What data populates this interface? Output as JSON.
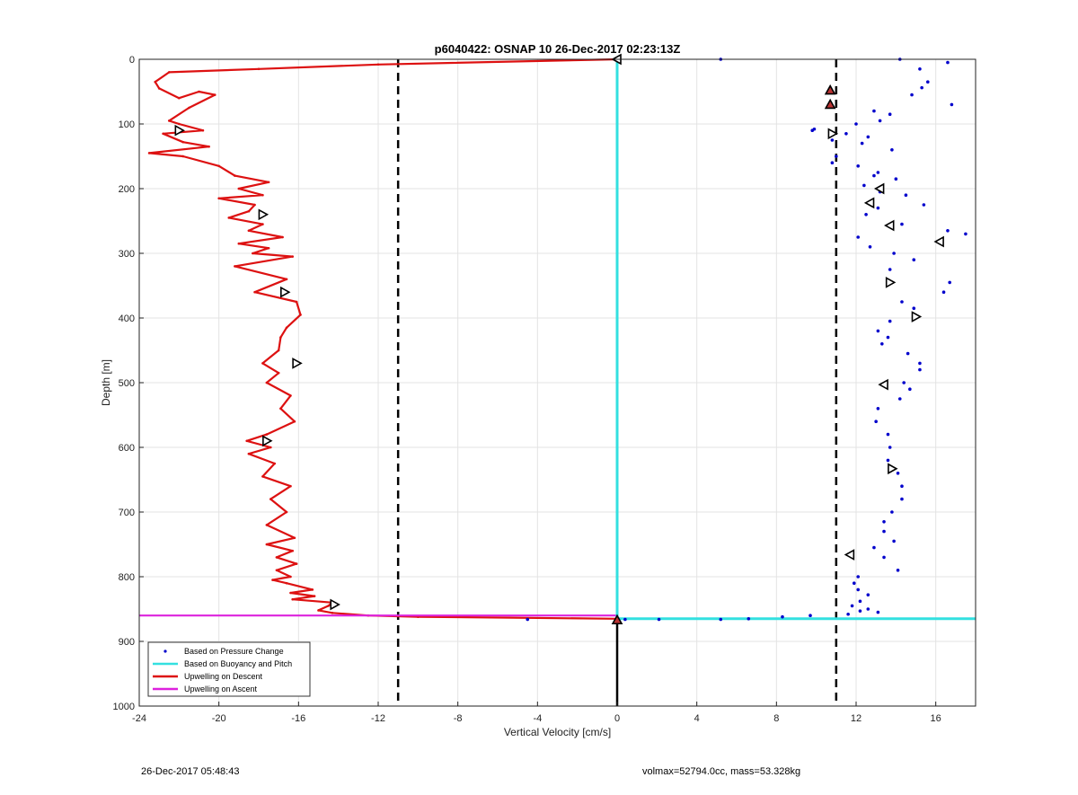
{
  "chart_data": {
    "type": "scatter",
    "title": "p6040422: OSNAP 10 26-Dec-2017 02:23:13Z",
    "xlabel": "Vertical Velocity [cm/s]",
    "ylabel": "Depth [m]",
    "xlim": [
      -24,
      18
    ],
    "ylim": [
      0,
      1000
    ],
    "y_reversed": true,
    "grid": true,
    "xticks": [
      -24,
      -20,
      -16,
      -12,
      -8,
      -4,
      0,
      4,
      8,
      12,
      16
    ],
    "yticks": [
      0,
      100,
      200,
      300,
      400,
      500,
      600,
      700,
      800,
      900,
      1000
    ],
    "legend_position": "bottom-left",
    "legend": [
      {
        "label": "Based on Pressure Change",
        "color": "#0000cc",
        "style": "dot"
      },
      {
        "label": "Based on Buoyancy and Pitch",
        "color": "#33e0e0",
        "style": "line"
      },
      {
        "label": "Upwelling on Descent",
        "color": "#dd1111",
        "style": "line"
      },
      {
        "label": "Upwelling on Ascent",
        "color": "#dd22dd",
        "style": "line"
      }
    ],
    "reference_lines": {
      "dashed_x": [
        -11,
        11
      ],
      "solid_x": 0,
      "solid_x_depth_range": [
        865,
        1000
      ]
    },
    "series": [
      {
        "name": "Upwelling on Descent",
        "color": "#dd1111",
        "x": [
          0,
          -12,
          -18,
          -22.5,
          -23.2,
          -23,
          -22,
          -21,
          -20.2,
          -21.5,
          -22.5,
          -22,
          -20.8,
          -22.8,
          -21.8,
          -20.5,
          -23.5,
          -21.8,
          -20,
          -19.2,
          -17.5,
          -19,
          -17.8,
          -20,
          -18.2,
          -18.5,
          -19.5,
          -17.8,
          -18.5,
          -16.8,
          -19,
          -17.5,
          -18.3,
          -16.3,
          -19.2,
          -16.6,
          -18.2,
          -16.1,
          -15.9,
          -16.6,
          -16.9,
          -17,
          -17.8,
          -17,
          -17.6,
          -16.4,
          -16.9,
          -16.2,
          -17.6,
          -18.6,
          -17.4,
          -18.5,
          -17.2,
          -17.8,
          -16.4,
          -17.4,
          -16.6,
          -17.6,
          -16.2,
          -17.6,
          -16.3,
          -17.1,
          -16.1,
          -17.1,
          -16.4,
          -17.3,
          -16.6,
          -15.3,
          -16.4,
          -15.2,
          -16.3,
          -14.3,
          -14.5,
          -15,
          -14.3,
          -12.5,
          -10,
          0
        ],
        "y": [
          0,
          8,
          15,
          20,
          35,
          45,
          60,
          50,
          55,
          75,
          95,
          100,
          110,
          115,
          128,
          135,
          145,
          150,
          165,
          180,
          190,
          200,
          210,
          215,
          225,
          235,
          245,
          255,
          265,
          275,
          285,
          292,
          300,
          305,
          320,
          340,
          360,
          375,
          395,
          415,
          430,
          450,
          470,
          485,
          500,
          520,
          540,
          560,
          580,
          590,
          600,
          610,
          625,
          645,
          660,
          680,
          700,
          720,
          740,
          750,
          760,
          770,
          780,
          790,
          800,
          805,
          810,
          820,
          825,
          830,
          835,
          840,
          845,
          852,
          856,
          860,
          862,
          865
        ]
      },
      {
        "name": "Upwelling on Ascent",
        "color": "#dd22dd",
        "x": [
          -24,
          0
        ],
        "y": [
          860,
          860
        ]
      },
      {
        "name": "Based on Buoyancy and Pitch",
        "color": "#33e0e0",
        "x": [
          0,
          0,
          18
        ],
        "y": [
          0,
          865,
          865
        ]
      },
      {
        "name": "Based on Pressure Change",
        "color": "#0000cc",
        "x": [
          15.2,
          15.6,
          15.3,
          14.8,
          16.8,
          12.9,
          13.2,
          13.7,
          12,
          11.5,
          12.6,
          10.8,
          12.3,
          13.8,
          9.8,
          9.9,
          11,
          10.8,
          12.1,
          13.1,
          12.9,
          14,
          12.4,
          13.2,
          14.5,
          15.4,
          13.1,
          12.5,
          14.3,
          16.6,
          17.5,
          12.1,
          12.7,
          13.9,
          14.9,
          13.7,
          16.7,
          16.4,
          14.3,
          14.9,
          13.7,
          13.1,
          13.6,
          13.3,
          14.6,
          15.2,
          15.2,
          14.4,
          14.7,
          14.2,
          13.1,
          13,
          13.6,
          13.7,
          13.6,
          14.1,
          14.3,
          14.3,
          13.8,
          13.4,
          13.4,
          13.9,
          12.9,
          13.4,
          14.1,
          12.1,
          11.9,
          12.1,
          12.6,
          12.2,
          11.8,
          12.6,
          13.1,
          12.2,
          11.6,
          5.2,
          14.2,
          16.6,
          9.7,
          8.3,
          6.6,
          5.2,
          2.1,
          -4.5,
          0.4
        ],
        "y": [
          15,
          35,
          44,
          55,
          70,
          80,
          95,
          85,
          100,
          115,
          120,
          125,
          130,
          140,
          110,
          108,
          150,
          160,
          165,
          175,
          180,
          185,
          195,
          205,
          210,
          225,
          230,
          240,
          255,
          265,
          270,
          275,
          290,
          300,
          310,
          325,
          345,
          360,
          375,
          385,
          405,
          420,
          430,
          440,
          455,
          470,
          480,
          500,
          510,
          525,
          540,
          560,
          580,
          600,
          620,
          640,
          660,
          680,
          700,
          715,
          730,
          745,
          755,
          770,
          790,
          800,
          810,
          820,
          828,
          838,
          845,
          850,
          855,
          853,
          858,
          0,
          0,
          5,
          860,
          862,
          865,
          866,
          866,
          866,
          866
        ]
      }
    ],
    "markers": [
      {
        "x": 0,
        "y": 0,
        "dir": "left"
      },
      {
        "x": -22,
        "y": 110,
        "dir": "right"
      },
      {
        "x": -17.8,
        "y": 240,
        "dir": "right"
      },
      {
        "x": -16.7,
        "y": 360,
        "dir": "right"
      },
      {
        "x": -16.1,
        "y": 470,
        "dir": "right"
      },
      {
        "x": -17.6,
        "y": 590,
        "dir": "right"
      },
      {
        "x": -14.2,
        "y": 843,
        "dir": "right"
      },
      {
        "x": 0,
        "y": 867,
        "dir": "up"
      },
      {
        "x": 10.7,
        "y": 48,
        "dir": "up"
      },
      {
        "x": 10.7,
        "y": 70,
        "dir": "up"
      },
      {
        "x": 10.8,
        "y": 115,
        "dir": "right"
      },
      {
        "x": 13.2,
        "y": 200,
        "dir": "left"
      },
      {
        "x": 12.7,
        "y": 222,
        "dir": "left"
      },
      {
        "x": 13.7,
        "y": 257,
        "dir": "left"
      },
      {
        "x": 16.2,
        "y": 282,
        "dir": "left"
      },
      {
        "x": 13.7,
        "y": 345,
        "dir": "right"
      },
      {
        "x": 15,
        "y": 398,
        "dir": "right"
      },
      {
        "x": 13.4,
        "y": 503,
        "dir": "left"
      },
      {
        "x": 13.8,
        "y": 633,
        "dir": "right"
      },
      {
        "x": 11.7,
        "y": 766,
        "dir": "left"
      }
    ]
  },
  "footer": {
    "left_text": "26-Dec-2017 05:48:43",
    "right_text": "volmax=52794.0cc, mass=53.328kg"
  }
}
